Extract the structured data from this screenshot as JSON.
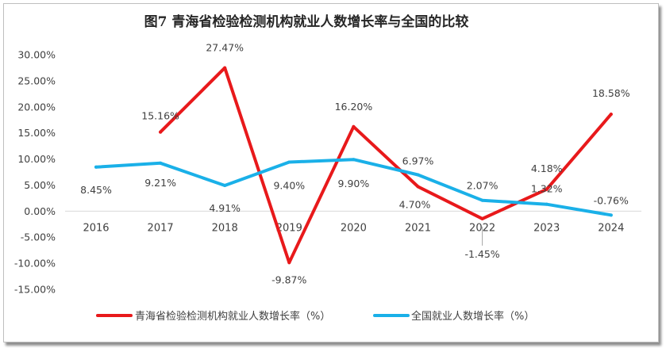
{
  "chart_data": {
    "type": "line",
    "title": "图7 青海省检验检测机构就业人数增长率与全国的比较",
    "categories": [
      "2016",
      "2017",
      "2018",
      "2019",
      "2020",
      "2021",
      "2022",
      "2023",
      "2024"
    ],
    "ylim": [
      -15,
      30
    ],
    "yticks": [
      30,
      25,
      20,
      15,
      10,
      5,
      0,
      -5,
      -10,
      -15
    ],
    "ytick_labels": [
      "30.00%",
      "25.00%",
      "20.00%",
      "15.00%",
      "10.00%",
      "5.00%",
      "0.00%",
      "-5.00%",
      "-10.00%",
      "-15.00%"
    ],
    "grid": false,
    "legend_position": "bottom",
    "series": [
      {
        "name": "青海省检验检测机构就业人数增长率（%）",
        "color": "#e8191b",
        "values": [
          null,
          15.16,
          27.47,
          -9.87,
          16.2,
          4.7,
          -1.45,
          4.18,
          18.58
        ],
        "labels": [
          null,
          "15.16%",
          "27.47%",
          "-9.87%",
          "16.20%",
          "4.70%",
          "-1.45%",
          "4.18%",
          "18.58%"
        ]
      },
      {
        "name": "全国就业人数增长率（%）",
        "color": "#1ab0e8",
        "values": [
          8.45,
          9.21,
          4.91,
          9.4,
          9.9,
          6.97,
          2.07,
          1.32,
          -0.76
        ],
        "labels": [
          "8.45%",
          "9.21%",
          "4.91%",
          "9.40%",
          "9.90%",
          "6.97%",
          "2.07%",
          "1.32%",
          "-0.76%"
        ]
      }
    ]
  }
}
